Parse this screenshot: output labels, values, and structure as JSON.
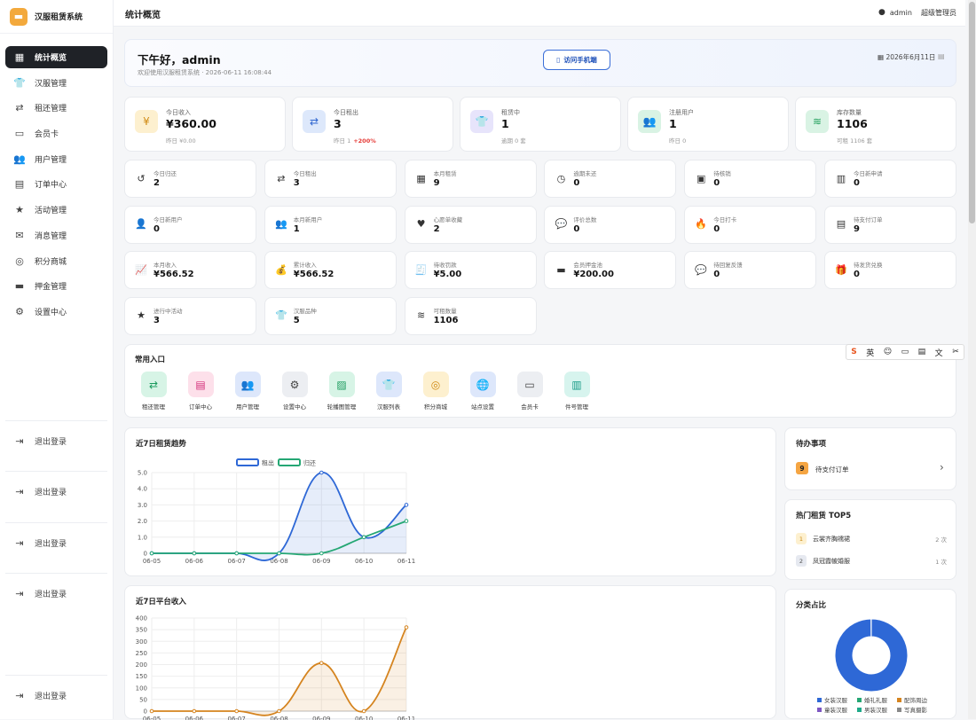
{
  "app": {
    "name": "汉服租赁系统"
  },
  "sidebar": {
    "items": [
      {
        "label": "统计概览",
        "icon": "grid-icon",
        "glyph": "▦",
        "active": true
      },
      {
        "label": "汉服管理",
        "icon": "shirt-icon",
        "glyph": "👕"
      },
      {
        "label": "租还管理",
        "icon": "swap-icon",
        "glyph": "⇄"
      },
      {
        "label": "会员卡",
        "icon": "id-card-icon",
        "glyph": "▭"
      },
      {
        "label": "用户管理",
        "icon": "users-icon",
        "glyph": "👥"
      },
      {
        "label": "订单中心",
        "icon": "receipt-icon",
        "glyph": "▤"
      },
      {
        "label": "活动管理",
        "icon": "star-icon",
        "glyph": "★"
      },
      {
        "label": "消息管理",
        "icon": "envelope-icon",
        "glyph": "✉"
      },
      {
        "label": "积分商城",
        "icon": "coins-icon",
        "glyph": "◎"
      },
      {
        "label": "押金管理",
        "icon": "wallet-icon",
        "glyph": "▬"
      },
      {
        "label": "设置中心",
        "icon": "gear-icon",
        "glyph": "⚙"
      }
    ],
    "logouts": [
      "退出登录",
      "退出登录",
      "退出登录",
      "退出登录",
      "退出登录"
    ]
  },
  "topbar": {
    "title": "统计概览",
    "user": "admin",
    "role": "超级管理员"
  },
  "welcome": {
    "title": "下午好，admin",
    "subtitle": "欢迎使用汉服租赁系统 · 2026-06-11 16:08:44",
    "button": "访问手机端",
    "date": "2026年6月11日"
  },
  "big_cards": [
    {
      "label": "今日收入",
      "value": "¥360.00",
      "sub": "昨日 ¥0.00",
      "icon": "yen-icon",
      "glyph": "¥",
      "bg": "#fdf0cf",
      "color": "#d08a12"
    },
    {
      "label": "今日租出",
      "value": "3",
      "sub": "昨日 1",
      "trend": "+200%",
      "icon": "swap-icon",
      "glyph": "⇄",
      "bg": "#dde8fb",
      "color": "#2f66d0"
    },
    {
      "label": "租赁中",
      "value": "1",
      "sub": "逾期 0 套",
      "icon": "shirt-icon",
      "glyph": "👕",
      "bg": "#e7e4fb",
      "color": "#5a48d3"
    },
    {
      "label": "注册用户",
      "value": "1",
      "sub": "昨日 0",
      "icon": "users-icon",
      "glyph": "👥",
      "bg": "#d9f3e4",
      "color": "#1f9e5a"
    },
    {
      "label": "库存数量",
      "value": "1106",
      "sub": "可租 1106 套",
      "icon": "layers-icon",
      "glyph": "≋",
      "bg": "#d9f3e4",
      "color": "#1f9e5a"
    }
  ],
  "small_cards": [
    {
      "label": "今日归还",
      "value": "2",
      "icon": "undo-icon",
      "glyph": "↺"
    },
    {
      "label": "今日租出",
      "value": "3",
      "icon": "swap-icon",
      "glyph": "⇄"
    },
    {
      "label": "本月租赁",
      "value": "9",
      "icon": "calendar-icon",
      "glyph": "▦"
    },
    {
      "label": "逾期未还",
      "value": "0",
      "icon": "clock-icon",
      "glyph": "◷"
    },
    {
      "label": "待核销",
      "value": "0",
      "icon": "qrcode-icon",
      "glyph": "▣"
    },
    {
      "label": "今日新申请",
      "value": "0",
      "icon": "calendar-plus-icon",
      "glyph": "▥"
    },
    {
      "label": "今日新用户",
      "value": "0",
      "icon": "user-plus-icon",
      "glyph": "👤"
    },
    {
      "label": "本月新用户",
      "value": "1",
      "icon": "users-icon",
      "glyph": "👥"
    },
    {
      "label": "心愿单收藏",
      "value": "2",
      "icon": "heart-icon",
      "glyph": "♥"
    },
    {
      "label": "评价总数",
      "value": "0",
      "icon": "comments-icon",
      "glyph": "💬"
    },
    {
      "label": "今日打卡",
      "value": "0",
      "icon": "fire-icon",
      "glyph": "🔥"
    },
    {
      "label": "待支付订单",
      "value": "9",
      "icon": "receipt-icon",
      "glyph": "▤"
    },
    {
      "label": "本月收入",
      "value": "¥566.52",
      "icon": "chart-line-icon",
      "glyph": "📈"
    },
    {
      "label": "累计收入",
      "value": "¥566.52",
      "icon": "money-bag-icon",
      "glyph": "💰"
    },
    {
      "label": "待收罚款",
      "value": "¥5.00",
      "icon": "invoice-icon",
      "glyph": "🧾"
    },
    {
      "label": "会员押金池",
      "value": "¥200.00",
      "icon": "wallet-icon",
      "glyph": "▬"
    },
    {
      "label": "待回复反馈",
      "value": "0",
      "icon": "comment-dots-icon",
      "glyph": "💬"
    },
    {
      "label": "待发货兑换",
      "value": "0",
      "icon": "gift-icon",
      "glyph": "🎁"
    },
    {
      "label": "进行中活动",
      "value": "3",
      "icon": "star-icon",
      "glyph": "★"
    },
    {
      "label": "汉服品种",
      "value": "5",
      "icon": "shirt-icon",
      "glyph": "👕"
    },
    {
      "label": "可租数量",
      "value": "1106",
      "icon": "layers-icon",
      "glyph": "≋"
    }
  ],
  "quick": {
    "title": "常用入口",
    "items": [
      {
        "label": "租还管理",
        "icon": "swap-icon",
        "glyph": "⇄",
        "bg": "#d7f4e6",
        "color": "#1b9b5e"
      },
      {
        "label": "订单中心",
        "icon": "receipt-icon",
        "glyph": "▤",
        "bg": "#fde0ea",
        "color": "#d4307a"
      },
      {
        "label": "用户管理",
        "icon": "users-icon",
        "glyph": "👥",
        "bg": "#dde7fb",
        "color": "#2f66d0"
      },
      {
        "label": "设置中心",
        "icon": "gear-icon",
        "glyph": "⚙",
        "bg": "#eceef2",
        "color": "#444"
      },
      {
        "label": "轮播图管理",
        "icon": "image-icon",
        "glyph": "▨",
        "bg": "#d7f4e6",
        "color": "#1b9b5e"
      },
      {
        "label": "汉服列表",
        "icon": "shirt-icon",
        "glyph": "👕",
        "bg": "#dde7fb",
        "color": "#2f66d0"
      },
      {
        "label": "积分商城",
        "icon": "coins-icon",
        "glyph": "◎",
        "bg": "#fdf0cf",
        "color": "#d08a12"
      },
      {
        "label": "站点设置",
        "icon": "globe-icon",
        "glyph": "🌐",
        "bg": "#dde7fb",
        "color": "#2f66d0"
      },
      {
        "label": "会员卡",
        "icon": "id-card-icon",
        "glyph": "▭",
        "bg": "#eceef2",
        "color": "#444"
      },
      {
        "label": "件号管理",
        "icon": "barcode-icon",
        "glyph": "▥",
        "bg": "#d7f4ee",
        "color": "#169a86"
      }
    ]
  },
  "ime_toolbar": {
    "lang": "英"
  },
  "chart_data": [
    {
      "type": "line",
      "title": "近7日租赁趋势",
      "categories": [
        "06-05",
        "06-06",
        "06-07",
        "06-08",
        "06-09",
        "06-10",
        "06-11"
      ],
      "ylim": [
        0,
        5
      ],
      "yticks": [
        "0",
        "1.0",
        "2.0",
        "3.0",
        "4.0",
        "5.0"
      ],
      "legend_position": "top",
      "series": [
        {
          "name": "租出",
          "values": [
            0,
            0,
            0,
            0,
            5,
            1,
            3
          ],
          "color": "#2e68d6",
          "area": true
        },
        {
          "name": "归还",
          "values": [
            0,
            0,
            0,
            0,
            0,
            1,
            2
          ],
          "color": "#25a774"
        }
      ]
    },
    {
      "type": "area",
      "title": "近7日平台收入",
      "categories": [
        "06-05",
        "06-06",
        "06-07",
        "06-08",
        "06-09",
        "06-10",
        "06-11"
      ],
      "ylim": [
        0,
        400
      ],
      "yticks": [
        "0",
        "50",
        "100",
        "150",
        "200",
        "250",
        "300",
        "350",
        "400"
      ],
      "series": [
        {
          "name": "收入",
          "values": [
            0,
            0,
            0,
            0,
            206.52,
            0,
            360
          ],
          "color": "#d5841f"
        }
      ]
    },
    {
      "type": "pie",
      "title": "分类占比",
      "labels": [
        "女装汉服",
        "婚礼礼服",
        "配饰周边",
        "童装汉服",
        "男装汉服",
        "写真摄影"
      ],
      "values": [
        1105,
        1,
        0,
        0,
        0,
        0
      ],
      "colors": [
        "#2e68d6",
        "#25a774",
        "#d5841f",
        "#7e57c2",
        "#1faa8a",
        "#888888"
      ]
    }
  ],
  "todo": {
    "title": "待办事项",
    "items": [
      {
        "count": "9",
        "label": "待支付订单"
      }
    ]
  },
  "hot": {
    "title": "热门租赁 TOP5",
    "items": [
      {
        "rank": "1",
        "name": "云裳齐胸襦裙",
        "count": "2 次"
      },
      {
        "rank": "2",
        "name": "凤冠霞帔婚服",
        "count": "1 次"
      }
    ]
  }
}
